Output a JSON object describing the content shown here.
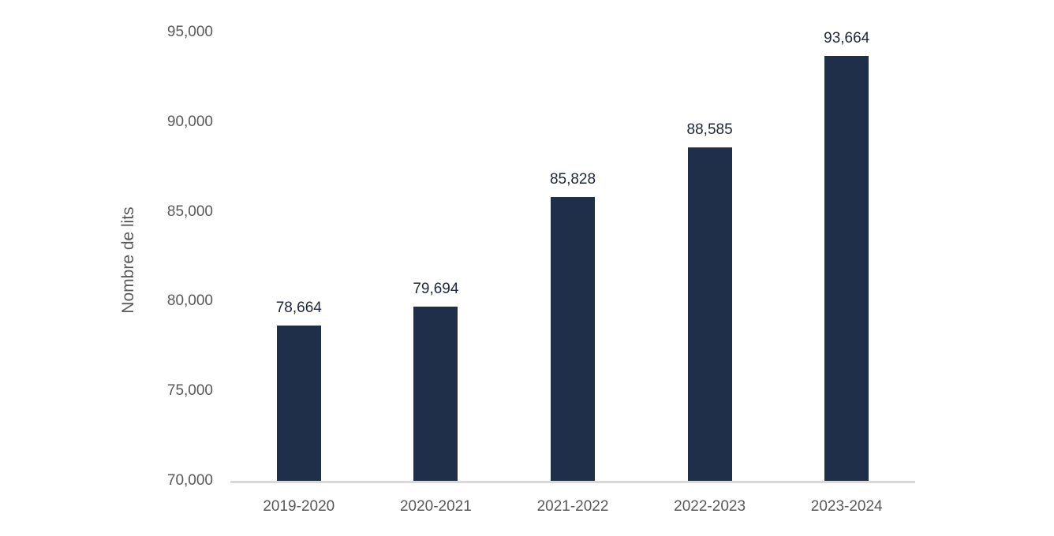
{
  "chart_data": {
    "type": "bar",
    "title": "",
    "xlabel": "",
    "ylabel": "Nombre de lits",
    "categories": [
      "2019-2020",
      "2020-2021",
      "2021-2022",
      "2022-2023",
      "2023-2024"
    ],
    "values": [
      78664,
      79694,
      85828,
      88585,
      93664
    ],
    "values_formatted": [
      "78,664",
      "79,694",
      "85,828",
      "88,585",
      "93,664"
    ],
    "ylim": [
      70000,
      95000
    ],
    "yticks": [
      70000,
      75000,
      80000,
      85000,
      90000,
      95000
    ],
    "ytick_labels": [
      "70,000",
      "75,000",
      "80,000",
      "85,000",
      "90,000",
      "95,000"
    ],
    "grid": false,
    "legend": "none",
    "colors": {
      "bar": "#1F2F49",
      "data_label": "#1F2636",
      "axis_text": "#595959",
      "axis_line": "#D9D9D9",
      "background": "#FFFFFF"
    }
  }
}
